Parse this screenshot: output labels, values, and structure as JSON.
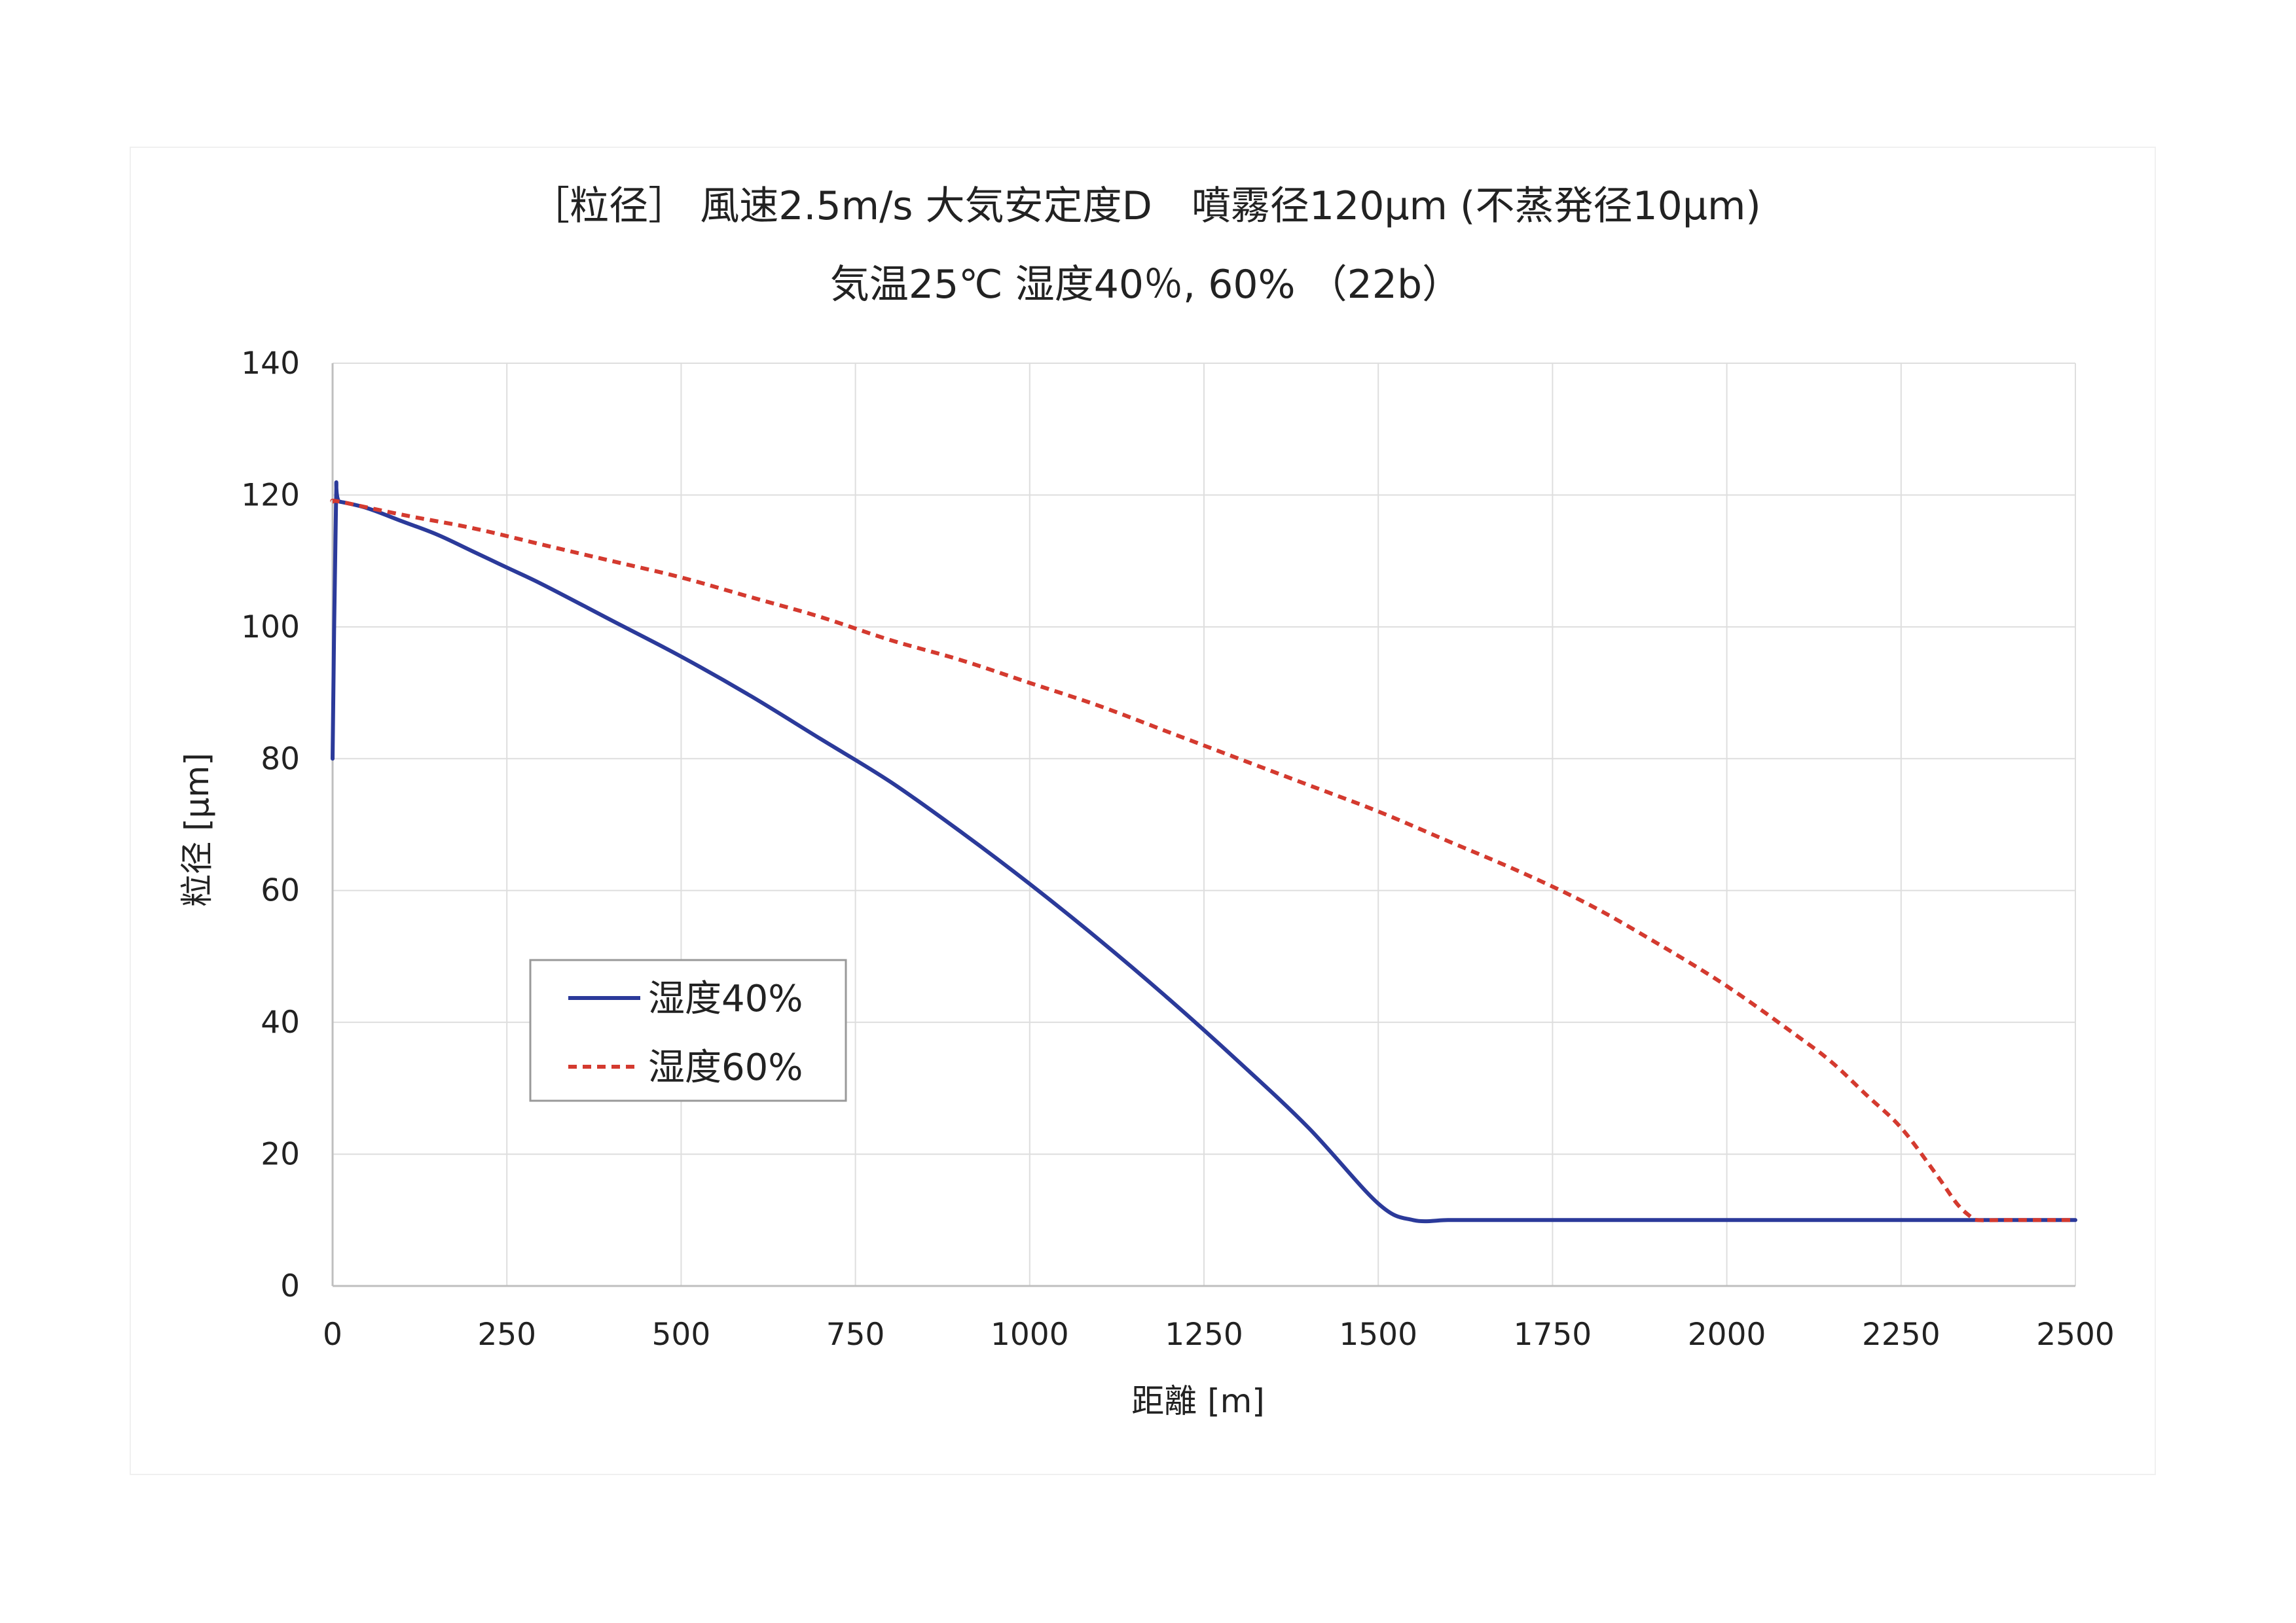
{
  "chart_data": {
    "type": "line",
    "title": "［粒径］ 風速2.5m/s 大気安定度D　噴霧径120µm (不蒸発径10µm)",
    "subtitle": "気温25℃ 湿度40％, 60% （22b）",
    "xlabel": "距離 [m]",
    "ylabel": "粒径 [µm]",
    "xlim": [
      0,
      2500
    ],
    "ylim": [
      0,
      140
    ],
    "x_ticks": [
      "0",
      "250",
      "500",
      "750",
      "1000",
      "1250",
      "1500",
      "1750",
      "2000",
      "2250",
      "2500"
    ],
    "y_ticks": [
      "0",
      "20",
      "40",
      "60",
      "80",
      "100",
      "120",
      "140"
    ],
    "grid": true,
    "legend_position": "lower-left",
    "series": [
      {
        "name": "湿度40%",
        "color": "#2b3a9a",
        "style": "solid",
        "x": [
          0,
          5,
          10,
          50,
          100,
          150,
          200,
          250,
          300,
          400,
          500,
          600,
          700,
          800,
          900,
          1000,
          1100,
          1200,
          1300,
          1400,
          1500,
          1550,
          1600,
          1650,
          1700,
          1720,
          1740,
          1750,
          1760,
          1770,
          1800,
          2000,
          2250,
          2500
        ],
        "y": [
          80,
          119,
          119,
          118,
          116,
          114,
          111.5,
          109,
          106.5,
          101,
          95.5,
          89.5,
          83,
          76.5,
          69,
          61,
          52.5,
          43.5,
          34,
          24,
          12.5,
          10,
          10,
          10,
          10,
          10,
          10,
          10,
          10,
          10,
          10,
          10,
          10,
          10
        ]
      },
      {
        "name": "湿度60%",
        "color": "#d43a2f",
        "style": "dashed",
        "x": [
          0,
          10,
          100,
          200,
          300,
          400,
          500,
          600,
          700,
          800,
          900,
          1000,
          1100,
          1200,
          1300,
          1400,
          1500,
          1600,
          1700,
          1800,
          1900,
          2000,
          2100,
          2150,
          2200,
          2250,
          2300,
          2330,
          2350,
          2360,
          2400,
          2500
        ],
        "y": [
          119,
          119,
          117,
          115,
          112.5,
          110,
          107.5,
          104.5,
          101.5,
          98,
          95,
          91.5,
          88,
          84,
          80,
          76,
          72,
          67.5,
          63,
          58,
          52,
          45.5,
          38,
          34,
          29,
          24,
          17,
          12.5,
          10.5,
          10,
          10,
          10
        ]
      }
    ]
  }
}
